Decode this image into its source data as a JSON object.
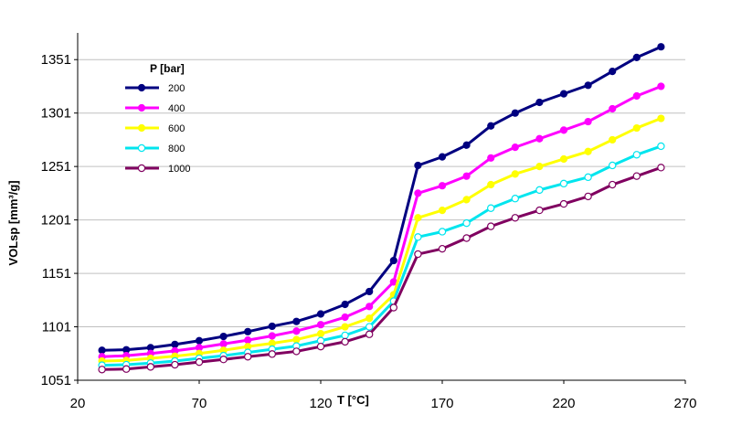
{
  "chart_data": {
    "type": "line",
    "title": "",
    "xlabel": "T [°C]",
    "ylabel": "VOLsp [mm³/g]",
    "xlim": [
      20,
      270
    ],
    "ylim": [
      1051,
      1376
    ],
    "x_ticks": [
      20,
      70,
      120,
      170,
      220,
      270
    ],
    "x_tick_labels": [
      "20",
      "70",
      "120",
      "170",
      "220",
      "270"
    ],
    "y_ticks": [
      1051,
      1101,
      1151,
      1201,
      1251,
      1301,
      1351
    ],
    "y_tick_labels": [
      "1051",
      "1101",
      "1151",
      "1201",
      "1251",
      "1301",
      "1351"
    ],
    "grid": "y",
    "legend_title": "P [bar]",
    "legend_position": "top-left",
    "x": [
      30,
      40,
      50,
      60,
      70,
      80,
      90,
      100,
      110,
      120,
      130,
      140,
      150,
      160,
      170,
      180,
      190,
      200,
      210,
      220,
      230,
      240,
      250,
      260
    ],
    "series": [
      {
        "name": "200",
        "color": "#000080",
        "marker": "filled",
        "values": [
          1079,
          1079.5,
          1081.5,
          1084.5,
          1088,
          1092,
          1096.5,
          1101.5,
          1106,
          1113,
          1122,
          1134,
          1163,
          1252,
          1260,
          1271,
          1289,
          1301,
          1311,
          1319,
          1327,
          1340,
          1353,
          1363
        ]
      },
      {
        "name": "400",
        "color": "#ff00ff",
        "marker": "filled",
        "values": [
          1073,
          1074,
          1076,
          1078.5,
          1081.5,
          1085,
          1088.5,
          1092.5,
          1097,
          1103,
          1110,
          1120,
          1143,
          1226,
          1233,
          1242,
          1259,
          1269,
          1277,
          1285,
          1293,
          1305,
          1317,
          1326
        ]
      },
      {
        "name": "600",
        "color": "#ffff00",
        "marker": "filled",
        "values": [
          1069,
          1069.5,
          1071.5,
          1073.5,
          1076,
          1079,
          1082.5,
          1085.5,
          1089,
          1094.5,
          1101,
          1109,
          1131,
          1203,
          1210,
          1220,
          1234,
          1244,
          1251,
          1258,
          1265,
          1276,
          1287,
          1296
        ]
      },
      {
        "name": "800",
        "color": "#00e5ee",
        "marker": "open",
        "values": [
          1065,
          1065.5,
          1067,
          1069,
          1071.5,
          1074,
          1077,
          1080,
          1083,
          1088,
          1093,
          1101,
          1125,
          1185,
          1190,
          1198,
          1212,
          1221,
          1229,
          1235,
          1241,
          1252,
          1262,
          1270
        ]
      },
      {
        "name": "1000",
        "color": "#800060",
        "marker": "open",
        "values": [
          1061,
          1061.5,
          1063.5,
          1065.5,
          1068,
          1070.5,
          1073,
          1075.5,
          1078,
          1082.5,
          1087,
          1094,
          1119,
          1169,
          1174,
          1184,
          1195,
          1203,
          1210,
          1216,
          1223,
          1234,
          1242,
          1250
        ]
      }
    ]
  }
}
